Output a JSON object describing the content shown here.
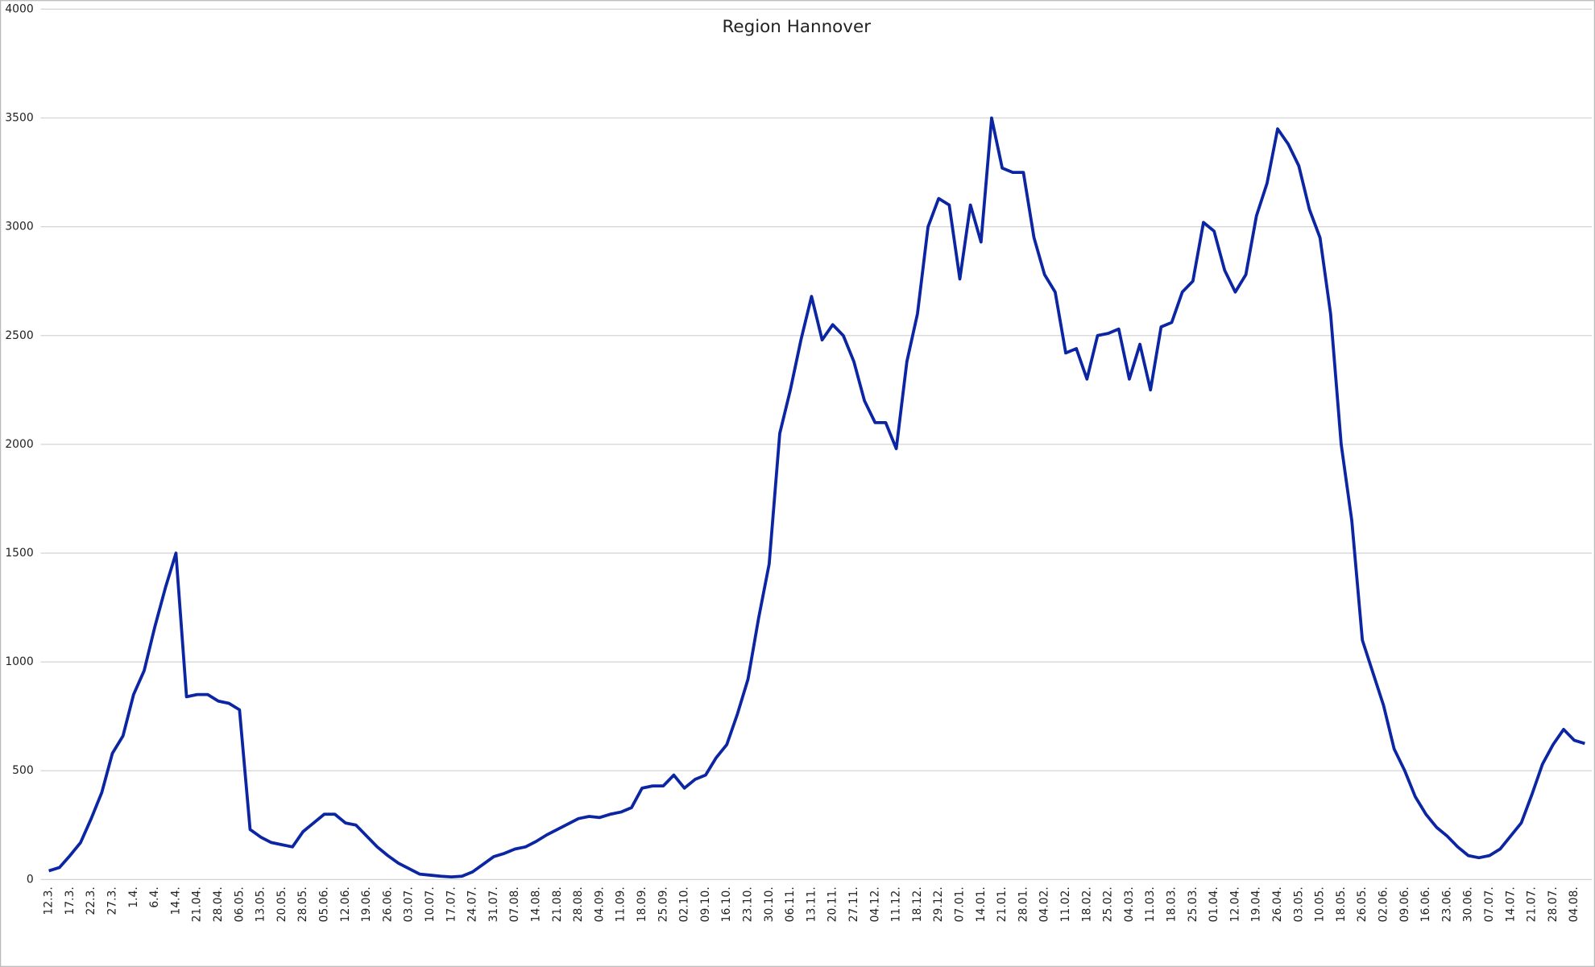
{
  "chart_data": {
    "type": "line",
    "title": "Region Hannover",
    "categories": [
      "12.3.",
      null,
      "17.3.",
      null,
      "22.3.",
      null,
      "27.3.",
      null,
      "1.4.",
      null,
      "6.4.",
      null,
      "14.4.",
      null,
      "21.04.",
      null,
      "28.04.",
      null,
      "06.05.",
      null,
      "13.05.",
      null,
      "20.05.",
      null,
      "28.05.",
      null,
      "05.06.",
      null,
      "12.06.",
      null,
      "19.06.",
      null,
      "26.06.",
      null,
      "03.07.",
      null,
      "10.07.",
      null,
      "17.07.",
      null,
      "24.07.",
      null,
      "31.07.",
      null,
      "07.08.",
      null,
      "14.08.",
      null,
      "21.08.",
      null,
      "28.08.",
      null,
      "04.09.",
      null,
      "11.09.",
      null,
      "18.09.",
      null,
      "25.09.",
      null,
      "02.10.",
      null,
      "09.10.",
      null,
      "16.10.",
      null,
      "23.10.",
      null,
      "30.10.",
      null,
      "06.11.",
      null,
      "13.11.",
      null,
      "20.11.",
      null,
      "27.11.",
      null,
      "04.12.",
      null,
      "11.12.",
      null,
      "18.12.",
      null,
      "29.12.",
      null,
      "07.01.",
      null,
      "14.01.",
      null,
      "21.01.",
      null,
      "28.01.",
      null,
      "04.02.",
      null,
      "11.02.",
      null,
      "18.02.",
      null,
      "25.02.",
      null,
      "04.03.",
      null,
      "11.03.",
      null,
      "18.03.",
      null,
      "25.03.",
      null,
      "01.04.",
      null,
      "12.04.",
      null,
      "19.04.",
      null,
      "26.04.",
      null,
      "03.05.",
      null,
      "10.05.",
      null,
      "18.05.",
      null,
      "26.05.",
      null,
      "02.06.",
      null,
      "09.06.",
      null,
      "16.06.",
      null,
      "23.06.",
      null,
      "30.06.",
      null,
      "07.07.",
      null,
      "14.07.",
      null,
      "21.07.",
      null,
      "28.07.",
      null,
      "04.08.",
      null
    ],
    "series": [
      {
        "name": "Region Hannover",
        "color": "#0b25a3",
        "values": [
          40,
          55,
          110,
          170,
          280,
          400,
          580,
          660,
          850,
          960,
          1160,
          1340,
          1500,
          840,
          850,
          850,
          820,
          810,
          780,
          230,
          195,
          170,
          160,
          150,
          220,
          260,
          300,
          300,
          260,
          250,
          200,
          150,
          110,
          75,
          50,
          25,
          20,
          15,
          12,
          15,
          35,
          70,
          105,
          120,
          140,
          150,
          175,
          205,
          230,
          255,
          280,
          290,
          285,
          300,
          310,
          330,
          420,
          430,
          430,
          480,
          420,
          460,
          480,
          560,
          620,
          760,
          920,
          1200,
          1450,
          2050,
          2250,
          2480,
          2680,
          2480,
          2550,
          2500,
          2380,
          2200,
          2100,
          2100,
          1980,
          2380,
          2600,
          3000,
          3130,
          3100,
          2760,
          3100,
          2930,
          3500,
          3270,
          3250,
          3250,
          2950,
          2780,
          2700,
          2420,
          2440,
          2300,
          2500,
          2510,
          2530,
          2300,
          2460,
          2250,
          2540,
          2560,
          2700,
          2750,
          3020,
          2980,
          2800,
          2700,
          2780,
          3050,
          3200,
          3450,
          3380,
          3280,
          3080,
          2950,
          2600,
          2000,
          1650,
          1100,
          950,
          800,
          600,
          500,
          380,
          300,
          240,
          200,
          150,
          110,
          100,
          110,
          140,
          200,
          260,
          390,
          530,
          620,
          690,
          640,
          625
        ]
      }
    ],
    "ylim": [
      0,
      4000
    ],
    "yticks": [
      0,
      500,
      1000,
      1500,
      2000,
      2500,
      3000,
      3500,
      4000
    ],
    "grid": true
  }
}
